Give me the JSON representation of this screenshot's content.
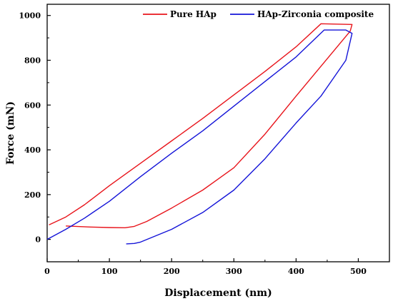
{
  "chart_data": {
    "type": "line",
    "xlabel": "Displacement (nm)",
    "ylabel": "Force (mN)",
    "xlim": [
      0,
      550
    ],
    "ylim": [
      -100,
      1050
    ],
    "x_ticks": [
      0,
      100,
      200,
      300,
      400,
      500
    ],
    "y_ticks": [
      0,
      200,
      400,
      600,
      800,
      1000
    ],
    "legend_position": "top",
    "series": [
      {
        "name": "Pure HAp",
        "color": "#e8141b",
        "points": [
          [
            3,
            65
          ],
          [
            30,
            100
          ],
          [
            60,
            155
          ],
          [
            100,
            240
          ],
          [
            150,
            340
          ],
          [
            200,
            440
          ],
          [
            250,
            540
          ],
          [
            300,
            645
          ],
          [
            350,
            750
          ],
          [
            400,
            860
          ],
          [
            440,
            963
          ],
          [
            490,
            960
          ],
          [
            487,
            930
          ],
          [
            460,
            840
          ],
          [
            430,
            740
          ],
          [
            400,
            640
          ],
          [
            350,
            470
          ],
          [
            300,
            320
          ],
          [
            250,
            220
          ],
          [
            200,
            140
          ],
          [
            160,
            80
          ],
          [
            140,
            58
          ],
          [
            125,
            52
          ],
          [
            100,
            53
          ],
          [
            70,
            55
          ],
          [
            30,
            60
          ]
        ]
      },
      {
        "name": "HAp-Zirconia composite",
        "color": "#1414d8",
        "points": [
          [
            0,
            0
          ],
          [
            30,
            45
          ],
          [
            60,
            95
          ],
          [
            100,
            170
          ],
          [
            150,
            280
          ],
          [
            200,
            385
          ],
          [
            250,
            485
          ],
          [
            300,
            595
          ],
          [
            350,
            705
          ],
          [
            400,
            815
          ],
          [
            445,
            935
          ],
          [
            480,
            935
          ],
          [
            490,
            920
          ],
          [
            480,
            800
          ],
          [
            460,
            720
          ],
          [
            440,
            640
          ],
          [
            400,
            520
          ],
          [
            350,
            360
          ],
          [
            300,
            220
          ],
          [
            250,
            120
          ],
          [
            200,
            45
          ],
          [
            165,
            5
          ],
          [
            150,
            -12
          ],
          [
            140,
            -18
          ],
          [
            127,
            -20
          ]
        ]
      }
    ]
  }
}
